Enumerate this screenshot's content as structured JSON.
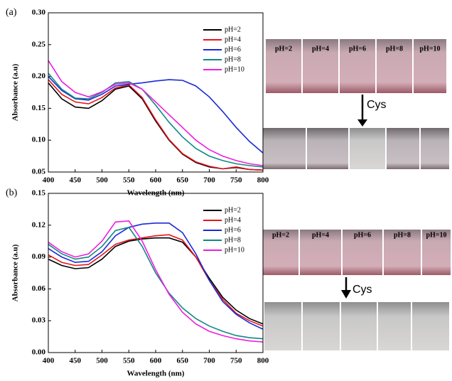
{
  "chart_data": [
    {
      "type": "line",
      "label": "(a)",
      "x_label": "Wavelength (nm)",
      "y_label": "Absorbance (a.u)",
      "x": [
        400,
        425,
        450,
        475,
        500,
        525,
        550,
        575,
        600,
        625,
        650,
        675,
        700,
        725,
        750,
        775,
        800
      ],
      "xlim": [
        400,
        800
      ],
      "xticks": [
        400,
        450,
        500,
        550,
        600,
        650,
        700,
        750,
        800
      ],
      "ylim": [
        0.05,
        0.3
      ],
      "yticks": [
        0.05,
        {
          "value": 0.1,
          "label": "0.10"
        },
        0.15,
        {
          "value": 0.2,
          "label": "0.20"
        },
        0.25,
        {
          "value": 0.3,
          "label": "0.30"
        }
      ],
      "series": [
        {
          "name": "pH=2",
          "color": "#000000",
          "values": [
            0.19,
            0.165,
            0.152,
            0.15,
            0.162,
            0.18,
            0.185,
            0.165,
            0.13,
            0.1,
            0.078,
            0.065,
            0.058,
            0.055,
            0.057,
            0.054,
            0.053
          ]
        },
        {
          "name": "pH=4",
          "color": "#e8141c",
          "values": [
            0.195,
            0.172,
            0.16,
            0.157,
            0.167,
            0.182,
            0.187,
            0.167,
            0.132,
            0.101,
            0.079,
            0.066,
            0.059,
            0.055,
            0.058,
            0.054,
            0.053
          ]
        },
        {
          "name": "pH=6",
          "color": "#1a2bd6",
          "values": [
            0.2,
            0.178,
            0.165,
            0.163,
            0.172,
            0.185,
            0.188,
            0.19,
            0.193,
            0.195,
            0.194,
            0.185,
            0.168,
            0.145,
            0.12,
            0.098,
            0.08
          ]
        },
        {
          "name": "pH=8",
          "color": "#0f8a80",
          "values": [
            0.205,
            0.18,
            0.166,
            0.165,
            0.175,
            0.19,
            0.192,
            0.18,
            0.155,
            0.128,
            0.105,
            0.087,
            0.075,
            0.068,
            0.063,
            0.06,
            0.058
          ]
        },
        {
          "name": "pH=10",
          "color": "#ee1de0",
          "values": [
            0.225,
            0.192,
            0.175,
            0.168,
            0.176,
            0.188,
            0.19,
            0.18,
            0.16,
            0.14,
            0.12,
            0.1,
            0.085,
            0.075,
            0.068,
            0.063,
            0.06
          ]
        }
      ]
    },
    {
      "type": "line",
      "label": "(b)",
      "x_label": "Wavelength (nm)",
      "y_label": "Absorbance (a.u)",
      "x": [
        400,
        425,
        450,
        475,
        500,
        525,
        550,
        575,
        600,
        625,
        650,
        675,
        700,
        725,
        750,
        775,
        800
      ],
      "xlim": [
        400,
        800
      ],
      "xticks": [
        400,
        450,
        500,
        550,
        600,
        650,
        700,
        750,
        800
      ],
      "ylim": [
        0.0,
        0.15
      ],
      "yticks": [
        {
          "value": 0.0,
          "label": "0.00"
        },
        0.03,
        0.06,
        0.09,
        0.12,
        0.15
      ],
      "series": [
        {
          "name": "pH=2",
          "color": "#000000",
          "values": [
            0.088,
            0.082,
            0.079,
            0.08,
            0.088,
            0.1,
            0.105,
            0.107,
            0.108,
            0.108,
            0.104,
            0.09,
            0.07,
            0.052,
            0.04,
            0.032,
            0.027
          ]
        },
        {
          "name": "pH=4",
          "color": "#e8141c",
          "values": [
            0.092,
            0.085,
            0.082,
            0.083,
            0.092,
            0.102,
            0.106,
            0.108,
            0.11,
            0.111,
            0.106,
            0.09,
            0.068,
            0.05,
            0.037,
            0.03,
            0.025
          ]
        },
        {
          "name": "pH=6",
          "color": "#1a2bd6",
          "values": [
            0.098,
            0.09,
            0.085,
            0.086,
            0.095,
            0.11,
            0.118,
            0.121,
            0.122,
            0.122,
            0.113,
            0.093,
            0.068,
            0.048,
            0.036,
            0.028,
            0.022
          ]
        },
        {
          "name": "pH=8",
          "color": "#0f8a80",
          "values": [
            0.102,
            0.093,
            0.088,
            0.09,
            0.1,
            0.115,
            0.118,
            0.1,
            0.075,
            0.056,
            0.042,
            0.032,
            0.025,
            0.02,
            0.016,
            0.014,
            0.013
          ]
        },
        {
          "name": "pH=10",
          "color": "#ee1de0",
          "values": [
            0.104,
            0.095,
            0.09,
            0.093,
            0.105,
            0.123,
            0.124,
            0.105,
            0.078,
            0.055,
            0.038,
            0.027,
            0.02,
            0.016,
            0.013,
            0.011,
            0.01
          ]
        }
      ]
    }
  ],
  "photos": [
    {
      "labels": [
        "pH=2",
        "pH=4",
        "pH=6",
        "pH=8",
        "pH=10"
      ],
      "reagent": "Cys"
    },
    {
      "labels": [
        "pH=2",
        "pH=4",
        "pH=6",
        "pH=8",
        "pH=10"
      ],
      "reagent": "Cys"
    }
  ]
}
